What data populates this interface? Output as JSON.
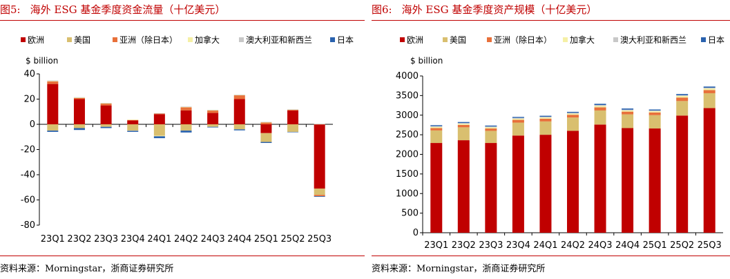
{
  "colors": {
    "europe": "#c00000",
    "us": "#d9bf6f",
    "asia_ex_japan": "#e8703a",
    "canada": "#f5f0a6",
    "australia_nz": "#c8c8c8",
    "japan": "#2a62ae",
    "title_red": "#c00000"
  },
  "legend": [
    "欧洲",
    "美国",
    "亚洲（除日本）",
    "加拿大",
    "澳大利亚和新西兰",
    "日本"
  ],
  "left": {
    "fig_num": "图5:",
    "title": "海外 ESG 基金季度资金流量（十亿美元）",
    "source": "资料来源：Morningstar，浙商证券研究所"
  },
  "right": {
    "fig_num": "图6:",
    "title": "海外 ESG 基金季度资产规模（十亿美元）",
    "source": "资料来源：Morningstar，浙商证券研究所"
  },
  "chart_data": [
    {
      "type": "bar",
      "stacked": true,
      "unit_label": "$ billion",
      "categories": [
        "23Q1",
        "23Q2",
        "23Q3",
        "23Q4",
        "24Q1",
        "24Q2",
        "24Q3",
        "24Q4",
        "25Q1",
        "25Q2",
        "25Q3"
      ],
      "ylim": [
        -80,
        40
      ],
      "yticks": [
        -80,
        -60,
        -40,
        -20,
        0,
        20,
        40
      ],
      "grid": false,
      "legend_position": "top",
      "series": [
        {
          "name": "欧洲",
          "values": [
            32,
            20,
            15,
            3,
            8,
            11,
            9,
            20,
            -7,
            11,
            -51
          ]
        },
        {
          "name": "美国",
          "values": [
            -5,
            -3,
            -2,
            -5,
            -9,
            -5,
            -2,
            -4,
            -7,
            -6,
            -5
          ]
        },
        {
          "name": "亚洲（除日本）",
          "values": [
            2,
            1,
            1.5,
            0.5,
            0.5,
            2.5,
            2,
            3,
            1.5,
            0.5,
            -1
          ]
        },
        {
          "name": "加拿大",
          "values": [
            0.3,
            0.2,
            0.2,
            0.2,
            -0.5,
            0.3,
            0.2,
            0.3,
            0.2,
            0.2,
            0.2
          ]
        },
        {
          "name": "澳大利亚和新西兰",
          "values": [
            0.5,
            0.3,
            0.3,
            -0.2,
            0.3,
            0.3,
            0.3,
            0.2,
            0.2,
            0.2,
            0.2
          ]
        },
        {
          "name": "日本",
          "values": [
            -1,
            -1.5,
            -1,
            -0.8,
            -1.5,
            -1.5,
            -0.5,
            -0.8,
            -0.8,
            -0.3,
            -0.5
          ]
        }
      ]
    },
    {
      "type": "bar",
      "stacked": true,
      "unit_label": "$ billion",
      "categories": [
        "23Q1",
        "23Q2",
        "23Q3",
        "23Q4",
        "24Q1",
        "24Q2",
        "24Q3",
        "24Q4",
        "25Q1",
        "25Q2",
        "25Q3"
      ],
      "ylim": [
        0,
        4000
      ],
      "yticks": [
        0,
        500,
        1000,
        1500,
        2000,
        2500,
        3000,
        3500,
        4000
      ],
      "grid": false,
      "legend_position": "top",
      "series": [
        {
          "name": "欧洲",
          "values": [
            2290,
            2360,
            2290,
            2480,
            2500,
            2600,
            2760,
            2670,
            2660,
            2990,
            3180
          ]
        },
        {
          "name": "美国",
          "values": [
            320,
            330,
            310,
            330,
            340,
            340,
            360,
            350,
            340,
            370,
            380
          ]
        },
        {
          "name": "亚洲（除日本）",
          "values": [
            60,
            60,
            60,
            70,
            70,
            70,
            80,
            70,
            70,
            90,
            80
          ]
        },
        {
          "name": "加拿大",
          "values": [
            30,
            30,
            30,
            30,
            30,
            30,
            35,
            30,
            30,
            40,
            40
          ]
        },
        {
          "name": "澳大利亚和新西兰",
          "values": [
            20,
            20,
            20,
            20,
            20,
            20,
            25,
            20,
            20,
            20,
            20
          ]
        },
        {
          "name": "日本",
          "values": [
            25,
            25,
            25,
            25,
            25,
            25,
            30,
            30,
            25,
            30,
            30
          ]
        }
      ]
    }
  ]
}
